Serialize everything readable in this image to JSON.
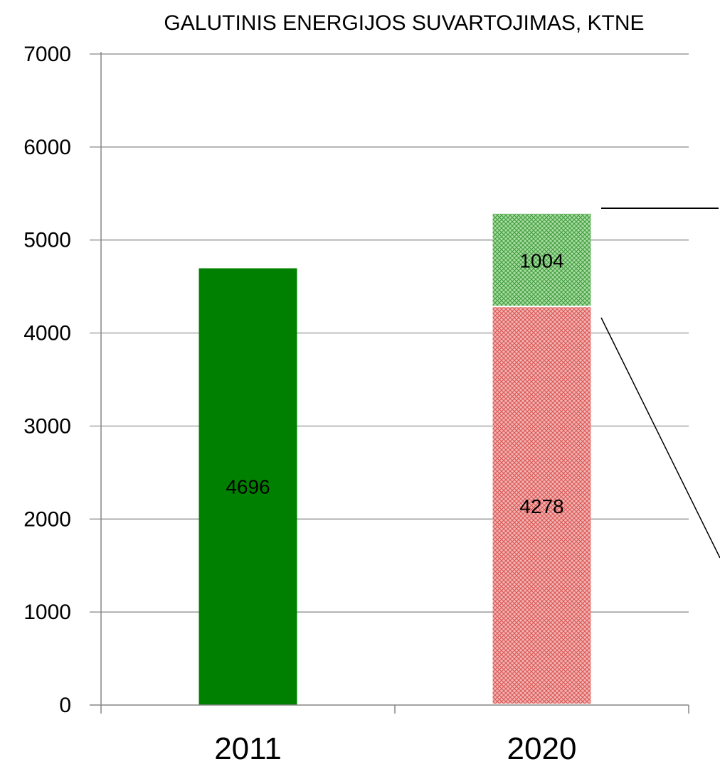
{
  "chart_data": {
    "type": "bar",
    "stacked": true,
    "title": "GALUTINIS ENERGIJOS SUVARTOJIMAS, KTNE",
    "xlabel": "",
    "ylabel": "",
    "ylim": [
      0,
      7000
    ],
    "yticks": [
      "0",
      "1000",
      "2000",
      "3000",
      "4000",
      "5000",
      "6000",
      "7000"
    ],
    "grid": true,
    "legend": "none",
    "categories": [
      "2011",
      "2020"
    ],
    "bars": [
      {
        "category": "2011",
        "segments": [
          {
            "value": 4696,
            "label": "4696",
            "color": "#008000",
            "pattern": "solid"
          }
        ]
      },
      {
        "category": "2020",
        "segments": [
          {
            "value": 4278,
            "label": "4278",
            "color": "#e06666",
            "pattern": "hatched"
          },
          {
            "value": 1004,
            "label": "1004",
            "color": "#4caf50",
            "pattern": "hatched"
          }
        ]
      }
    ]
  }
}
